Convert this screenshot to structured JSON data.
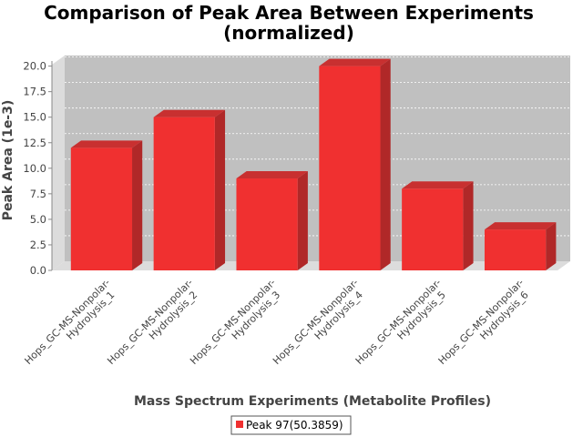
{
  "chart_data": {
    "type": "bar",
    "title": "Comparison of Peak Area Between Experiments",
    "subtitle": "(normalized)",
    "xlabel": "Mass Spectrum Experiments (Metabolite Profiles)",
    "ylabel": "Peak Area (1e-3)",
    "categories": [
      [
        "Hops_GC-MS-Nonpolar-",
        "Hydrolysis_1"
      ],
      [
        "Hops_GC-MS-Nonpolar-",
        "Hydrolysis_2"
      ],
      [
        "Hops_GC-MS-Nonpolar-",
        "Hydrolysis_3"
      ],
      [
        "Hops_GC-MS-Nonpolar-",
        "Hydrolysis_4"
      ],
      [
        "Hops_GC-MS-Nonpolar-",
        "Hydrolysis_5"
      ],
      [
        "Hops_GC-MS-Nonpolar-",
        "Hydrolysis_6"
      ]
    ],
    "series": [
      {
        "name": "Peak 97(50.3859)",
        "values": [
          12,
          15,
          9,
          20,
          8,
          4
        ]
      }
    ],
    "ylim": [
      0,
      20.5
    ],
    "yticks": [
      "0.0",
      "2.5",
      "5.0",
      "7.5",
      "10.0",
      "12.5",
      "15.0",
      "17.5",
      "20.0"
    ],
    "grid": true,
    "legend_position": "bottom",
    "colors": {
      "bar_front": "#f03030",
      "bar_side": "#b02828",
      "bar_top": "#c83030",
      "plot_bg": "#c0c0c0",
      "plot_side": "#dcdcdc",
      "gridline": "#ffffff",
      "axis": "#888888"
    }
  }
}
